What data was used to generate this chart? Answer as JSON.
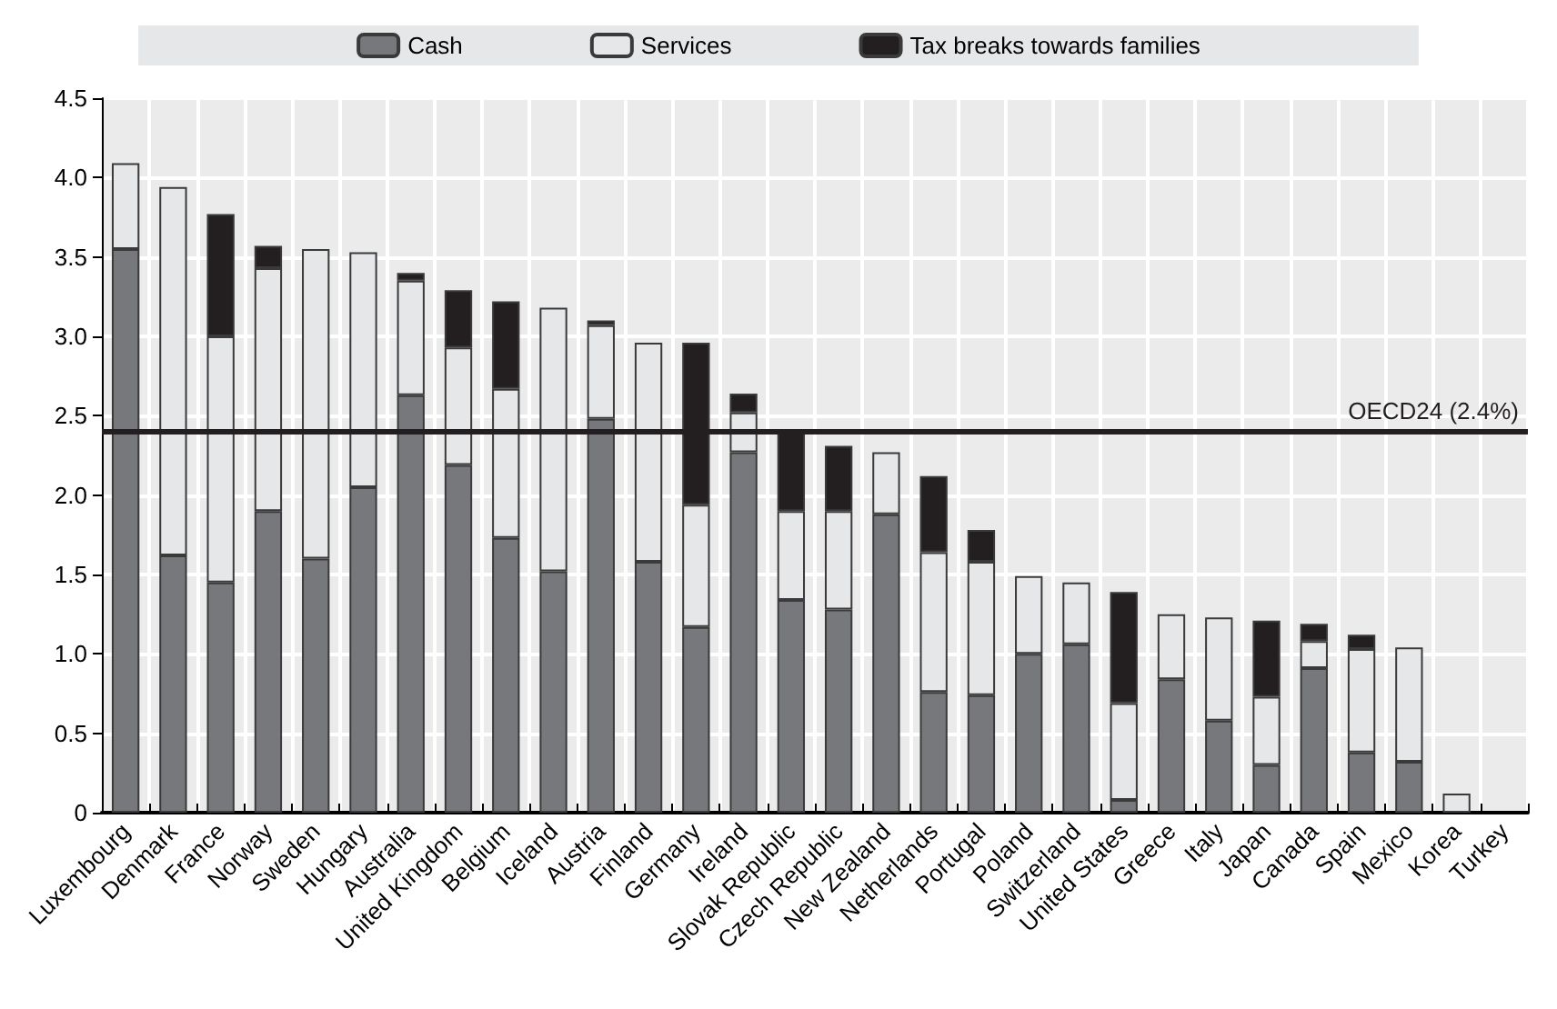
{
  "chart_data": {
    "type": "bar",
    "stacked": true,
    "categories": [
      "Luxembourg",
      "Denmark",
      "France",
      "Norway",
      "Sweden",
      "Hungary",
      "Australia",
      "United Kingdom",
      "Belgium",
      "Iceland",
      "Austria",
      "Finland",
      "Germany",
      "Ireland",
      "Slovak Republic",
      "Czech Republic",
      "New Zealand",
      "Netherlands",
      "Portugal",
      "Poland",
      "Switzerland",
      "United States",
      "Greece",
      "Italy",
      "Japan",
      "Canada",
      "Spain",
      "Mexico",
      "Korea",
      "Turkey"
    ],
    "series": [
      {
        "name": "Cash",
        "color": "#77787c",
        "values": [
          3.55,
          1.62,
          1.45,
          1.9,
          1.6,
          2.05,
          2.63,
          2.19,
          1.73,
          1.52,
          2.48,
          1.58,
          1.17,
          2.27,
          1.34,
          1.28,
          1.88,
          0.76,
          0.74,
          1.0,
          1.06,
          0.08,
          0.84,
          0.58,
          0.3,
          0.91,
          0.38,
          0.32,
          0,
          0
        ]
      },
      {
        "name": "Services",
        "color": "#e6e7e9",
        "values": [
          0.54,
          2.32,
          1.55,
          1.53,
          1.95,
          1.48,
          0.72,
          0.74,
          0.94,
          1.66,
          0.59,
          1.38,
          0.77,
          0.25,
          0.56,
          0.62,
          0.39,
          0.88,
          0.84,
          0.49,
          0.39,
          0.61,
          0.41,
          0.65,
          0.43,
          0.17,
          0.65,
          0.72,
          0.12,
          0
        ]
      },
      {
        "name": "Tax breaks towards families",
        "color": "#231f20",
        "values": [
          0,
          0,
          0.77,
          0.14,
          0,
          0,
          0.05,
          0.36,
          0.55,
          0,
          0.03,
          0,
          1.02,
          0.12,
          0.5,
          0.41,
          0,
          0.48,
          0.2,
          0,
          0,
          0.7,
          0,
          0,
          0.48,
          0.11,
          0.09,
          0,
          0,
          0
        ]
      }
    ],
    "ylim": [
      0,
      4.5
    ],
    "yticks": [
      0,
      0.5,
      {
        "value": 1,
        "label": "1.0"
      },
      1.5,
      {
        "value": 2,
        "label": "2.0"
      },
      2.5,
      {
        "value": 3,
        "label": "3.0"
      },
      3.5,
      {
        "value": 4,
        "label": "4.0"
      },
      4.5
    ],
    "ref_lines": [
      {
        "axis": "y",
        "value": 2.4,
        "label": "OECD24 (2.4%)",
        "color": "#231f20"
      }
    ],
    "grid": true,
    "legend": "top"
  }
}
